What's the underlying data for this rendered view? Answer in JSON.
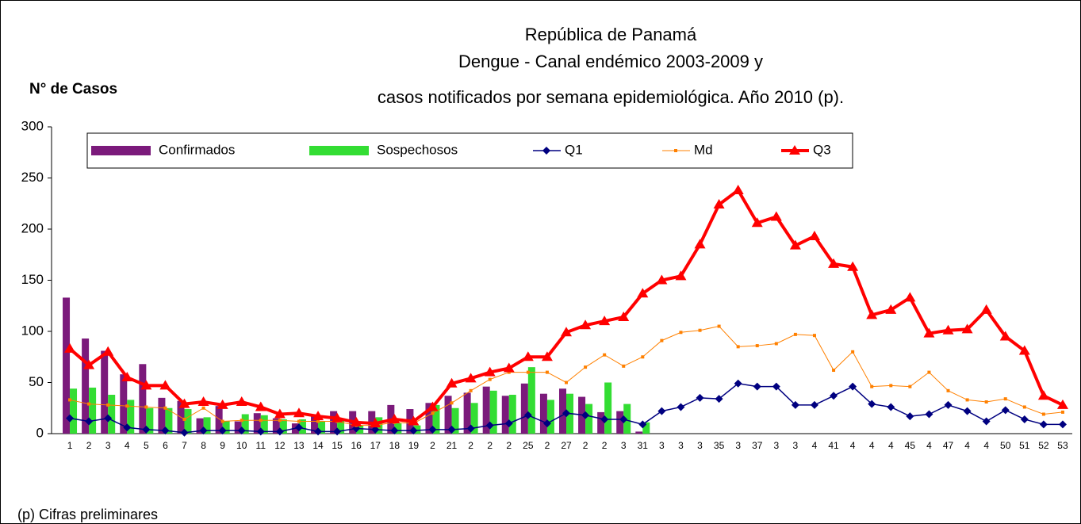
{
  "chart_data": {
    "type": "combo",
    "title": [
      "República de Panamá",
      "Dengue - Canal endémico 2003-2009 y",
      "casos notificados por semana epidemiológica. Año 2010 (p)."
    ],
    "y_label": "N° de Casos",
    "footnote": "(p) Cifras preliminares",
    "categories": [
      "1",
      "2",
      "3",
      "4",
      "5",
      "6",
      "7",
      "8",
      "9",
      "10",
      "11",
      "12",
      "13",
      "14",
      "15",
      "16",
      "17",
      "18",
      "19",
      "2",
      "21",
      "2",
      "2",
      "2",
      "25",
      "2",
      "27",
      "2",
      "2",
      "3",
      "31",
      "3",
      "3",
      "3",
      "35",
      "3",
      "37",
      "3",
      "3",
      "4",
      "41",
      "4",
      "4",
      "4",
      "45",
      "4",
      "47",
      "4",
      "4",
      "50",
      "51",
      "52",
      "53"
    ],
    "ylim": [
      0,
      300
    ],
    "yticks": [
      0,
      50,
      100,
      150,
      200,
      250,
      300
    ],
    "grid": false,
    "legend": "top-left",
    "series": [
      {
        "name": "Confirmados",
        "type": "bar",
        "color": "#7b1a7b",
        "values": [
          133,
          93,
          81,
          58,
          68,
          35,
          32,
          15,
          27,
          12,
          20,
          15,
          10,
          18,
          22,
          22,
          22,
          28,
          24,
          30,
          37,
          40,
          46,
          37,
          49,
          39,
          44,
          36,
          21,
          22,
          2,
          null,
          null,
          null,
          null,
          null,
          null,
          null,
          null,
          null,
          null,
          null,
          null,
          null,
          null,
          null,
          null,
          null,
          null,
          null,
          null,
          null,
          null
        ]
      },
      {
        "name": "Sospechosos",
        "type": "bar",
        "color": "#33dd33",
        "values": [
          44,
          45,
          38,
          33,
          25,
          25,
          24,
          16,
          12,
          19,
          18,
          14,
          14,
          12,
          13,
          8,
          16,
          10,
          8,
          28,
          25,
          30,
          42,
          38,
          65,
          33,
          39,
          29,
          50,
          29,
          11,
          null,
          null,
          null,
          null,
          null,
          null,
          null,
          null,
          null,
          null,
          null,
          null,
          null,
          null,
          null,
          null,
          null,
          null,
          null,
          null,
          null,
          null
        ]
      },
      {
        "name": "Q1",
        "type": "line",
        "marker": "diamond",
        "color": "#000080",
        "values": [
          15,
          12,
          15,
          6,
          4,
          3,
          1,
          3,
          3,
          3,
          2,
          2,
          6,
          2,
          2,
          5,
          4,
          3,
          3,
          4,
          4,
          5,
          8,
          10,
          18,
          10,
          20,
          18,
          14,
          14,
          9,
          22,
          26,
          35,
          34,
          49,
          46,
          46,
          28,
          28,
          37,
          46,
          29,
          26,
          17,
          19,
          28,
          22,
          12,
          23,
          14,
          9,
          9
        ]
      },
      {
        "name": "Md",
        "type": "line",
        "marker": "square",
        "color": "#ff8000",
        "values": [
          33,
          29,
          28,
          27,
          26,
          25,
          14,
          25,
          12,
          13,
          13,
          13,
          12,
          12,
          12,
          8,
          8,
          11,
          10,
          20,
          30,
          42,
          53,
          60,
          60,
          60,
          50,
          65,
          77,
          66,
          75,
          91,
          99,
          101,
          105,
          85,
          86,
          88,
          97,
          96,
          62,
          80,
          46,
          47,
          46,
          60,
          42,
          33,
          31,
          34,
          26,
          19,
          21
        ]
      },
      {
        "name": "Q3",
        "type": "line",
        "marker": "triangle",
        "color": "#ff0000",
        "values": [
          83,
          67,
          80,
          55,
          47,
          47,
          29,
          31,
          28,
          31,
          26,
          19,
          20,
          17,
          15,
          11,
          10,
          14,
          12,
          26,
          49,
          54,
          60,
          64,
          75,
          75,
          99,
          106,
          110,
          114,
          137,
          150,
          154,
          185,
          224,
          238,
          206,
          212,
          184,
          193,
          166,
          163,
          116,
          121,
          133,
          98,
          101,
          102,
          121,
          95,
          81,
          37,
          28
        ]
      }
    ]
  }
}
